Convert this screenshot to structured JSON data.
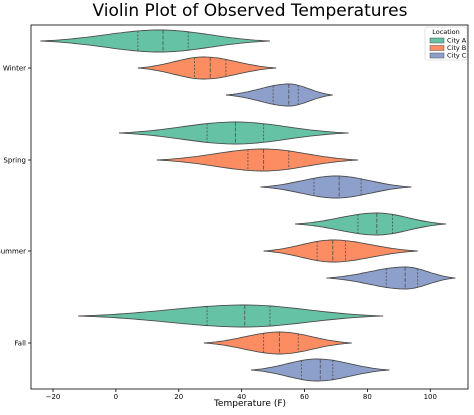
{
  "chart_data": {
    "type": "violin",
    "orientation": "horizontal",
    "title": "Violin Plot of Observed Temperatures",
    "xlabel": "Temperature (F)",
    "ylabel": "",
    "xlim": [
      -27,
      112
    ],
    "xticks": [
      -20,
      0,
      20,
      40,
      60,
      80,
      100
    ],
    "categories": [
      "Winter",
      "Spring",
      "Summer",
      "Fall"
    ],
    "legend": {
      "title": "Location",
      "placement": "top-right",
      "entries": [
        "City A",
        "City B",
        "City C"
      ]
    },
    "colors": {
      "City A": "#66c2a5",
      "City B": "#fc8d62",
      "City C": "#8da0cb",
      "outline": "#4d4d4d"
    },
    "series": [
      {
        "name": "City A",
        "distributions": [
          {
            "category": "Winter",
            "min": -24,
            "q1": 7,
            "median": 15,
            "q3": 23,
            "max": 49,
            "peak": 14
          },
          {
            "category": "Spring",
            "min": 1,
            "q1": 29,
            "median": 38,
            "q3": 47,
            "max": 74,
            "peak": 38
          },
          {
            "category": "Summer",
            "min": 57,
            "q1": 77,
            "median": 83,
            "q3": 88,
            "max": 105,
            "peak": 83
          },
          {
            "category": "Fall",
            "min": -12,
            "q1": 29,
            "median": 41,
            "q3": 49,
            "max": 85,
            "peak": 41
          }
        ]
      },
      {
        "name": "City B",
        "distributions": [
          {
            "category": "Winter",
            "min": 7,
            "q1": 25,
            "median": 30,
            "q3": 35,
            "max": 51,
            "peak": 28
          },
          {
            "category": "Spring",
            "min": 13,
            "q1": 42,
            "median": 47,
            "q3": 55,
            "max": 77,
            "peak": 47
          },
          {
            "category": "Summer",
            "min": 47,
            "q1": 64,
            "median": 69,
            "q3": 73,
            "max": 96,
            "peak": 69
          },
          {
            "category": "Fall",
            "min": 28,
            "q1": 47,
            "median": 52,
            "q3": 58,
            "max": 75,
            "peak": 52
          }
        ]
      },
      {
        "name": "City C",
        "distributions": [
          {
            "category": "Winter",
            "min": 35,
            "q1": 50,
            "median": 55,
            "q3": 58,
            "max": 69,
            "peak": 55
          },
          {
            "category": "Spring",
            "min": 46,
            "q1": 63,
            "median": 71,
            "q3": 78,
            "max": 94,
            "peak": 70
          },
          {
            "category": "Summer",
            "min": 67,
            "q1": 86,
            "median": 92,
            "q3": 96,
            "max": 108,
            "peak": 92
          },
          {
            "category": "Fall",
            "min": 43,
            "q1": 59,
            "median": 65,
            "q3": 69,
            "max": 87,
            "peak": 64
          }
        ]
      }
    ]
  }
}
